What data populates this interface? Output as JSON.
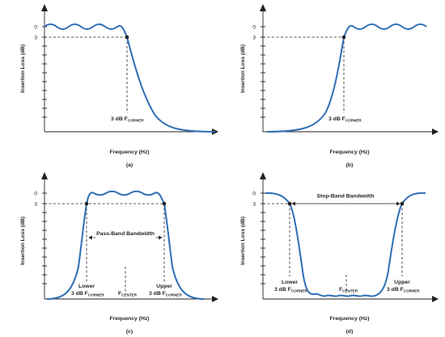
{
  "panels": [
    {
      "id": "a",
      "caption": "(a)",
      "xlabel": "Frequency (Hz)",
      "ylabel": "Insertion Loss (dB)",
      "ytick0": "0",
      "ytick3": "3",
      "corner_main": "3 dB F",
      "corner_sub": "CORNER"
    },
    {
      "id": "b",
      "caption": "(b)",
      "xlabel": "Frequency (Hz)",
      "ylabel": "Insertion Loss (dB)",
      "ytick0": "0",
      "ytick3": "3",
      "corner_main": "3 dB F",
      "corner_sub": "CORNER"
    },
    {
      "id": "c",
      "caption": "(c)",
      "xlabel": "Frequency (Hz)",
      "ylabel": "Insertion Loss (dB)",
      "ytick0": "0",
      "ytick3": "3",
      "band_label": "Pass-Band Bandwidth",
      "lower_word": "Lower",
      "upper_word": "Upper",
      "corner_main": "3 dB F",
      "corner_sub": "CORNER",
      "center_main": "F",
      "center_sub": "CENTER"
    },
    {
      "id": "d",
      "caption": "(d)",
      "xlabel": "Frequency (Hz)",
      "ylabel": "Insertion Loss (dB)",
      "ytick0": "0",
      "ytick3": "3",
      "band_label": "Stop-Band Bandwidth",
      "lower_word": "Lower",
      "upper_word": "Upper",
      "corner_main": "3 dB F",
      "corner_sub": "CORNER",
      "center_main": "F",
      "center_sub": "CENTER"
    }
  ],
  "colors": {
    "curve": "#2e6eb5",
    "ink": "#231f20"
  }
}
